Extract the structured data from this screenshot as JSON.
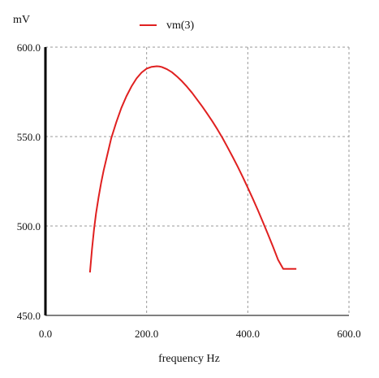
{
  "chart_data": {
    "type": "line",
    "y_unit": "mV",
    "xlabel": "frequency Hz",
    "xlim": [
      0,
      600
    ],
    "ylim": [
      450,
      600
    ],
    "x_ticks": [
      "0.0",
      "200.0",
      "400.0",
      "600.0"
    ],
    "y_ticks": [
      "450.0",
      "500.0",
      "550.0",
      "600.0"
    ],
    "grid": true,
    "legend_position": "top",
    "series": [
      {
        "name": "vm(3)",
        "color": "#e02020",
        "x": [
          88,
          92,
          96,
          100,
          105,
          110,
          115,
          120,
          130,
          140,
          150,
          160,
          170,
          180,
          190,
          200,
          210,
          220,
          225,
          230,
          240,
          250,
          260,
          270,
          280,
          290,
          300,
          310,
          320,
          330,
          340,
          350,
          360,
          370,
          380,
          390,
          400,
          410,
          420,
          430,
          440,
          450,
          460,
          470,
          480,
          490,
          496
        ],
        "y": [
          474.0,
          487.0,
          498.0,
          507.0,
          516.0,
          524.0,
          531.0,
          537.0,
          549.0,
          558.0,
          566.0,
          572.5,
          578.0,
          582.5,
          585.8,
          588.0,
          589.0,
          589.3,
          589.2,
          588.9,
          587.7,
          586.0,
          583.6,
          580.9,
          577.8,
          574.4,
          570.6,
          566.8,
          562.7,
          558.5,
          554.0,
          549.2,
          544.0,
          538.7,
          533.2,
          527.4,
          521.4,
          515.2,
          508.8,
          502.1,
          495.3,
          488.3,
          481.0,
          476.0,
          476.0,
          476.0,
          476.0
        ]
      }
    ]
  }
}
